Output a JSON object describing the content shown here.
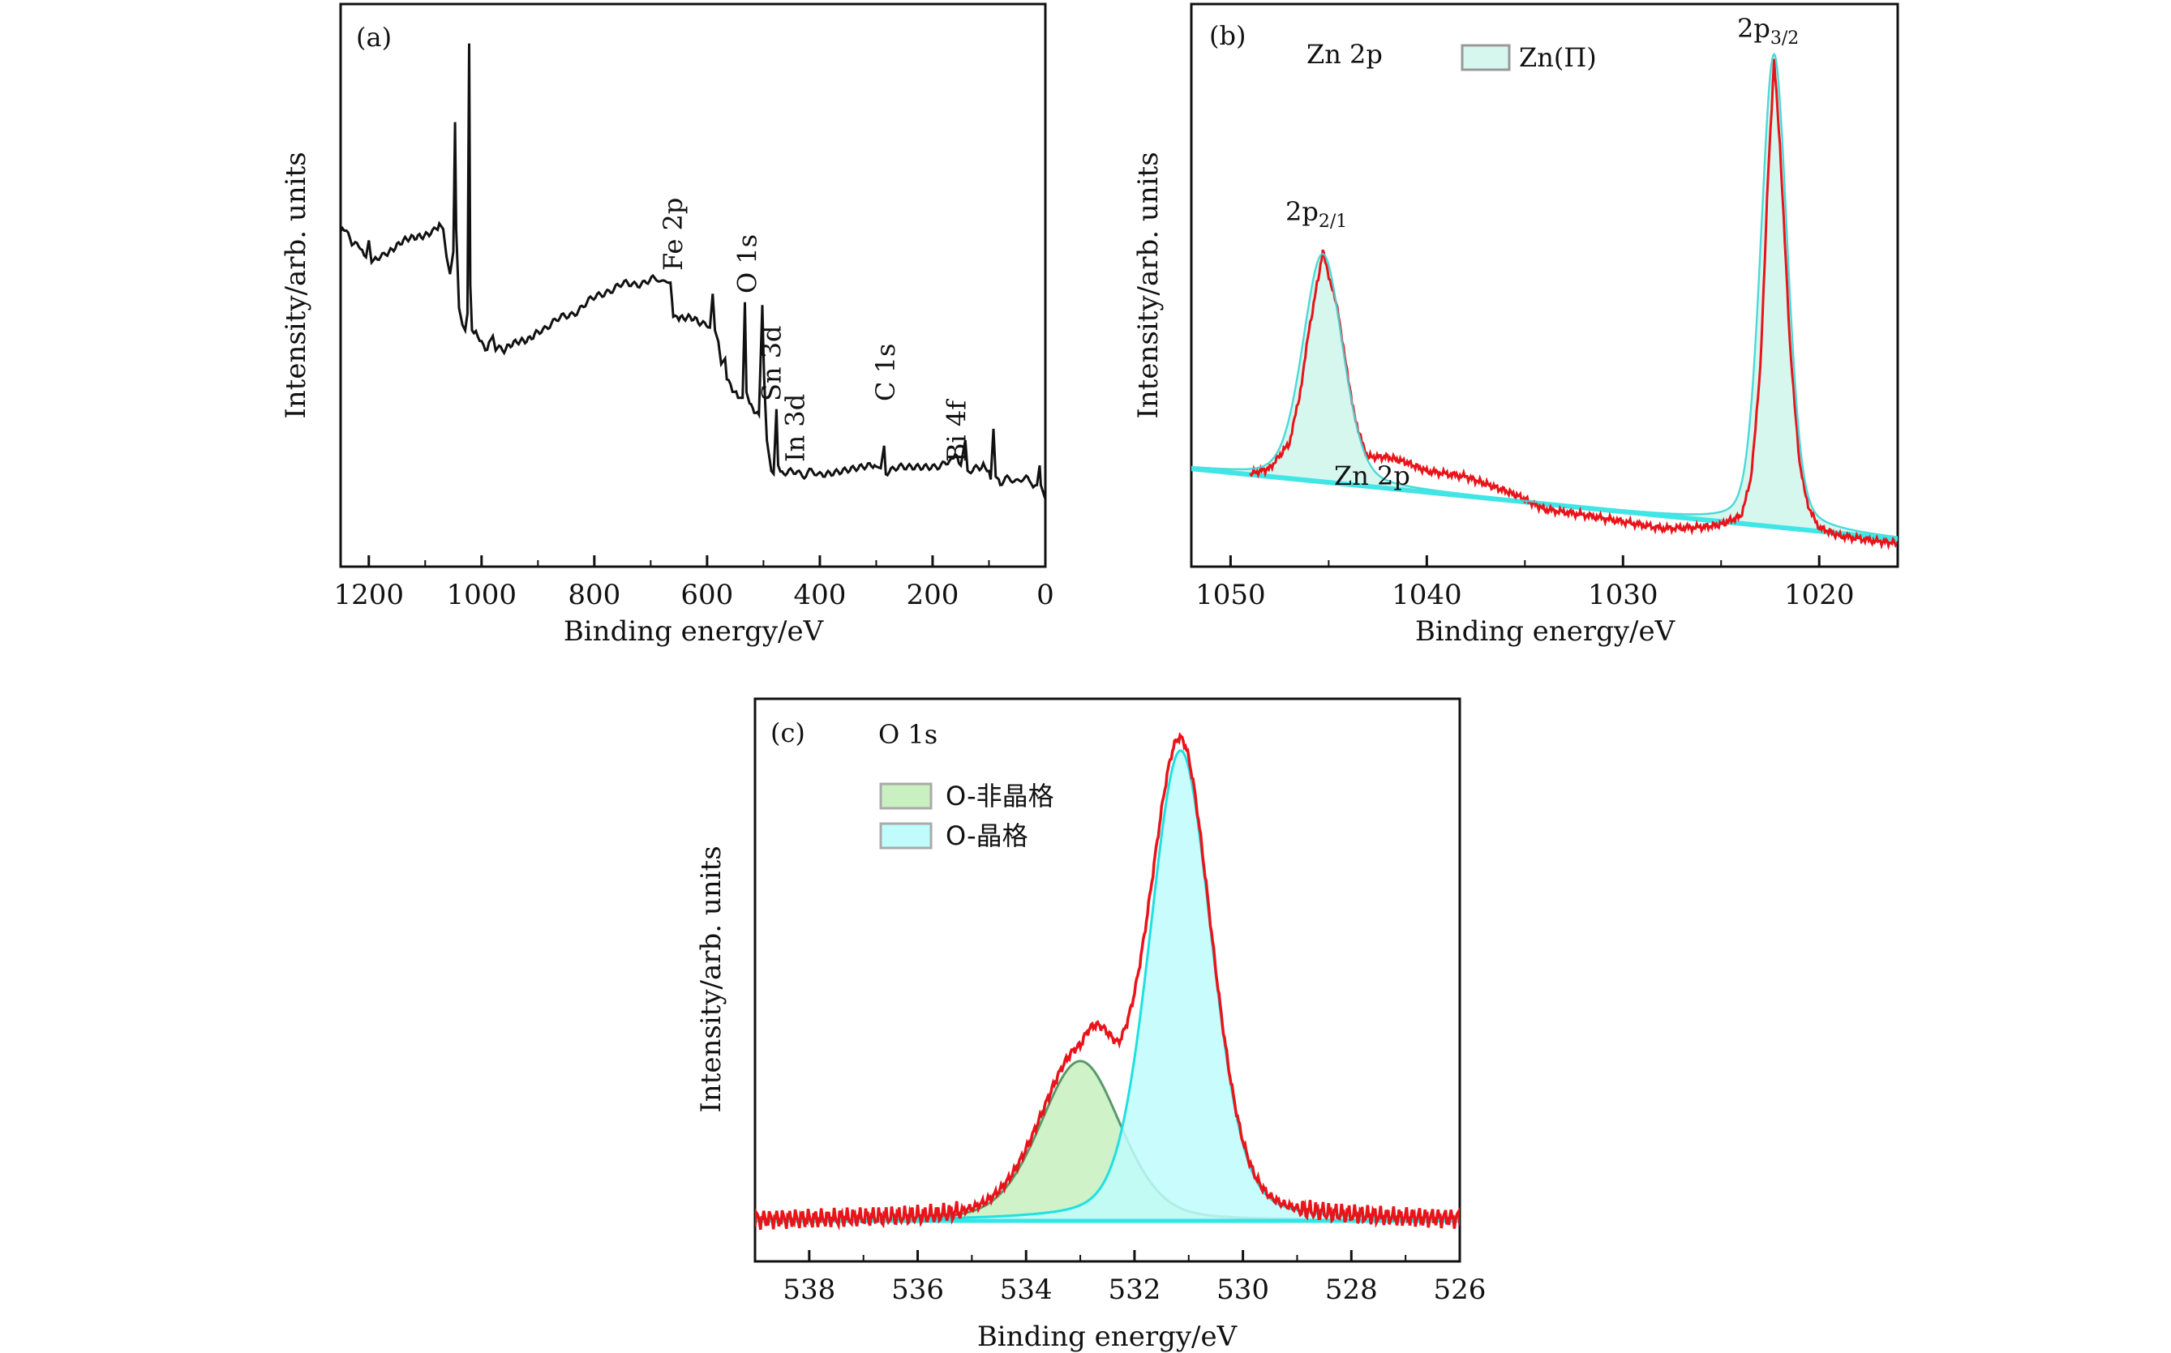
{
  "chart_data": [
    {
      "panel": "(a)",
      "type": "line",
      "xlabel": "Binding energy/eV",
      "ylabel": "Intensity/arb. units",
      "xlim": [
        1250,
        0
      ],
      "ylim": [
        0,
        100
      ],
      "x_ticks": [
        1200,
        1000,
        800,
        600,
        400,
        200,
        0
      ],
      "x_minor_ticks": [
        1100,
        900,
        700,
        500,
        300,
        100
      ],
      "grid": false,
      "line_color": "#111111",
      "annotations": [
        {
          "text": "Fe 2p",
          "x": 662
        },
        {
          "text": "O 1s",
          "x": 530
        },
        {
          "text": "Sn 3d",
          "x": 487
        },
        {
          "text": "In 3d",
          "x": 445
        },
        {
          "text": "C 1s",
          "x": 285
        },
        {
          "text": "Bi 4f",
          "x": 159
        }
      ],
      "series": [
        {
          "points": [
            [
              1250,
              59
            ],
            [
              1240,
              60
            ],
            [
              1230,
              58
            ],
            [
              1215,
              57
            ],
            [
              1205,
              55
            ],
            [
              1200,
              58
            ],
            [
              1195,
              54
            ],
            [
              1185,
              55
            ],
            [
              1170,
              56
            ],
            [
              1150,
              57
            ],
            [
              1130,
              58
            ],
            [
              1110,
              59
            ],
            [
              1090,
              59.5
            ],
            [
              1075,
              61
            ],
            [
              1068,
              60
            ],
            [
              1062,
              55
            ],
            [
              1056,
              52
            ],
            [
              1050,
              56
            ],
            [
              1047,
              79
            ],
            [
              1045,
              60
            ],
            [
              1040,
              46
            ],
            [
              1034,
              43
            ],
            [
              1029,
              42
            ],
            [
              1025,
              45
            ],
            [
              1022,
              93
            ],
            [
              1020,
              50
            ],
            [
              1017,
              42
            ],
            [
              1010,
              41
            ],
            [
              1000,
              40
            ],
            [
              990,
              39
            ],
            [
              980,
              41
            ],
            [
              975,
              38.5
            ],
            [
              960,
              38.5
            ],
            [
              940,
              39.5
            ],
            [
              920,
              40.5
            ],
            [
              900,
              42
            ],
            [
              870,
              43.5
            ],
            [
              840,
              45
            ],
            [
              810,
              47
            ],
            [
              780,
              49
            ],
            [
              750,
              50
            ],
            [
              720,
              50.5
            ],
            [
              690,
              51
            ],
            [
              665,
              50.5
            ],
            [
              660,
              45
            ],
            [
              650,
              44.5
            ],
            [
              630,
              44
            ],
            [
              610,
              43
            ],
            [
              595,
              42.5
            ],
            [
              590,
              48.5
            ],
            [
              586,
              42
            ],
            [
              580,
              40
            ],
            [
              575,
              36
            ],
            [
              568,
              37
            ],
            [
              565,
              34
            ],
            [
              555,
              31
            ],
            [
              545,
              30
            ],
            [
              537,
              30
            ],
            [
              533,
              47
            ],
            [
              530,
              31
            ],
            [
              522,
              28
            ],
            [
              508,
              27
            ],
            [
              502,
              46.5
            ],
            [
              499,
              34
            ],
            [
              494,
              22.5
            ],
            [
              486,
              17
            ],
            [
              482,
              16.5
            ],
            [
              477,
              28
            ],
            [
              474,
              18
            ],
            [
              470,
              16.8
            ],
            [
              440,
              16.5
            ],
            [
              400,
              16.7
            ],
            [
              350,
              17.3
            ],
            [
              300,
              17.8
            ],
            [
              292,
              17.5
            ],
            [
              286,
              21.5
            ],
            [
              283,
              17
            ],
            [
              250,
              17.5
            ],
            [
              200,
              18
            ],
            [
              170,
              18.5
            ],
            [
              160,
              19.5
            ],
            [
              150,
              18
            ],
            [
              142,
              22.5
            ],
            [
              138,
              16.5
            ],
            [
              120,
              17.3
            ],
            [
              110,
              18.5
            ],
            [
              100,
              17
            ],
            [
              97,
              15.5
            ],
            [
              92,
              24.5
            ],
            [
              88,
              16
            ],
            [
              80,
              15.3
            ],
            [
              40,
              15.5
            ],
            [
              25,
              15
            ],
            [
              15,
              14.5
            ],
            [
              10,
              18
            ],
            [
              8,
              14.5
            ],
            [
              0,
              12
            ]
          ]
        }
      ]
    },
    {
      "panel": "(b)",
      "type": "area",
      "title": "Zn 2p",
      "xlabel": "Binding energy/eV",
      "ylabel": "Intensity/arb. units",
      "xlim": [
        1052,
        1016
      ],
      "ylim": [
        0,
        100
      ],
      "x_ticks": [
        1050,
        1040,
        1030,
        1020
      ],
      "x_minor_ticks": [
        1045,
        1035,
        1025
      ],
      "grid": false,
      "legend": {
        "position": "top-center",
        "entries": [
          {
            "label": "Zn(Π)",
            "color": "#d6f7ee"
          }
        ]
      },
      "annotations": [
        {
          "text": "2p",
          "sub": "2/1",
          "x": 1045.3
        },
        {
          "text": "2p",
          "sub": "3/2",
          "x": 1022.3
        },
        {
          "text": "Zn 2p",
          "x": 1040
        }
      ],
      "background": {
        "start": [
          1052,
          17.4
        ],
        "end": [
          1016,
          4.9
        ]
      },
      "components": [
        {
          "name": "Zn(Π)",
          "center": 1045.3,
          "height": 40.5,
          "fwhm": 2.4
        },
        {
          "name": "Zn(Π)",
          "center": 1022.3,
          "height": 84,
          "fwhm": 1.6
        }
      ],
      "colors": {
        "measured": "#e8141a",
        "fill": "#d6f7ee",
        "envelope": "#40e6e6",
        "component_edge": "#8a9a98"
      },
      "measured": [
        [
          1049,
          16.5
        ],
        [
          1048,
          17.5
        ],
        [
          1047,
          22
        ],
        [
          1046.5,
          30
        ],
        [
          1046,
          42
        ],
        [
          1045.3,
          56
        ],
        [
          1044.5,
          45
        ],
        [
          1044,
          33
        ],
        [
          1043.5,
          24
        ],
        [
          1043,
          19.5
        ],
        [
          1042,
          19.5
        ],
        [
          1041,
          18.5
        ],
        [
          1040,
          17
        ],
        [
          1038,
          16
        ],
        [
          1037,
          14.7
        ],
        [
          1036,
          13.5
        ],
        [
          1035,
          12
        ],
        [
          1034,
          10.2
        ],
        [
          1032,
          9.2
        ],
        [
          1030,
          8
        ],
        [
          1028,
          6.8
        ],
        [
          1026,
          7
        ],
        [
          1025,
          7.5
        ],
        [
          1024,
          9
        ],
        [
          1023.5,
          15
        ],
        [
          1023,
          35
        ],
        [
          1022.6,
          70
        ],
        [
          1022.3,
          90
        ],
        [
          1022,
          75
        ],
        [
          1021.5,
          40
        ],
        [
          1021,
          18
        ],
        [
          1020.5,
          10
        ],
        [
          1020,
          7
        ],
        [
          1019,
          5.5
        ],
        [
          1017,
          4.5
        ],
        [
          1016,
          4.2
        ]
      ]
    },
    {
      "panel": "(c)",
      "type": "area",
      "title": "O 1s",
      "xlabel": "Binding energy/eV",
      "ylabel": "Intensity/arb. units",
      "xlim": [
        539,
        526
      ],
      "ylim": [
        0,
        100
      ],
      "x_ticks": [
        538,
        536,
        534,
        532,
        530,
        528,
        526
      ],
      "x_minor_ticks": [
        537,
        535,
        533,
        531,
        529,
        527
      ],
      "grid": false,
      "legend": {
        "position": "top-left",
        "entries": [
          {
            "label": "O-非晶格",
            "color": "#c8f0c0"
          },
          {
            "label": "O-晶格",
            "color": "#c0fcfc"
          }
        ]
      },
      "background": 7.2,
      "components": [
        {
          "name": "O-非晶格",
          "center": 533.0,
          "height": 28.4,
          "fwhm": 1.75,
          "fill": "#c8f0c0",
          "edge": "#5a9a6a"
        },
        {
          "name": "O-晶格",
          "center": 531.15,
          "height": 83.6,
          "fwhm": 1.35,
          "fill": "#c0fcfc",
          "edge": "#20e0e0"
        }
      ],
      "colors": {
        "measured": "#e8141a",
        "baseline": "#30e6e6"
      }
    }
  ]
}
